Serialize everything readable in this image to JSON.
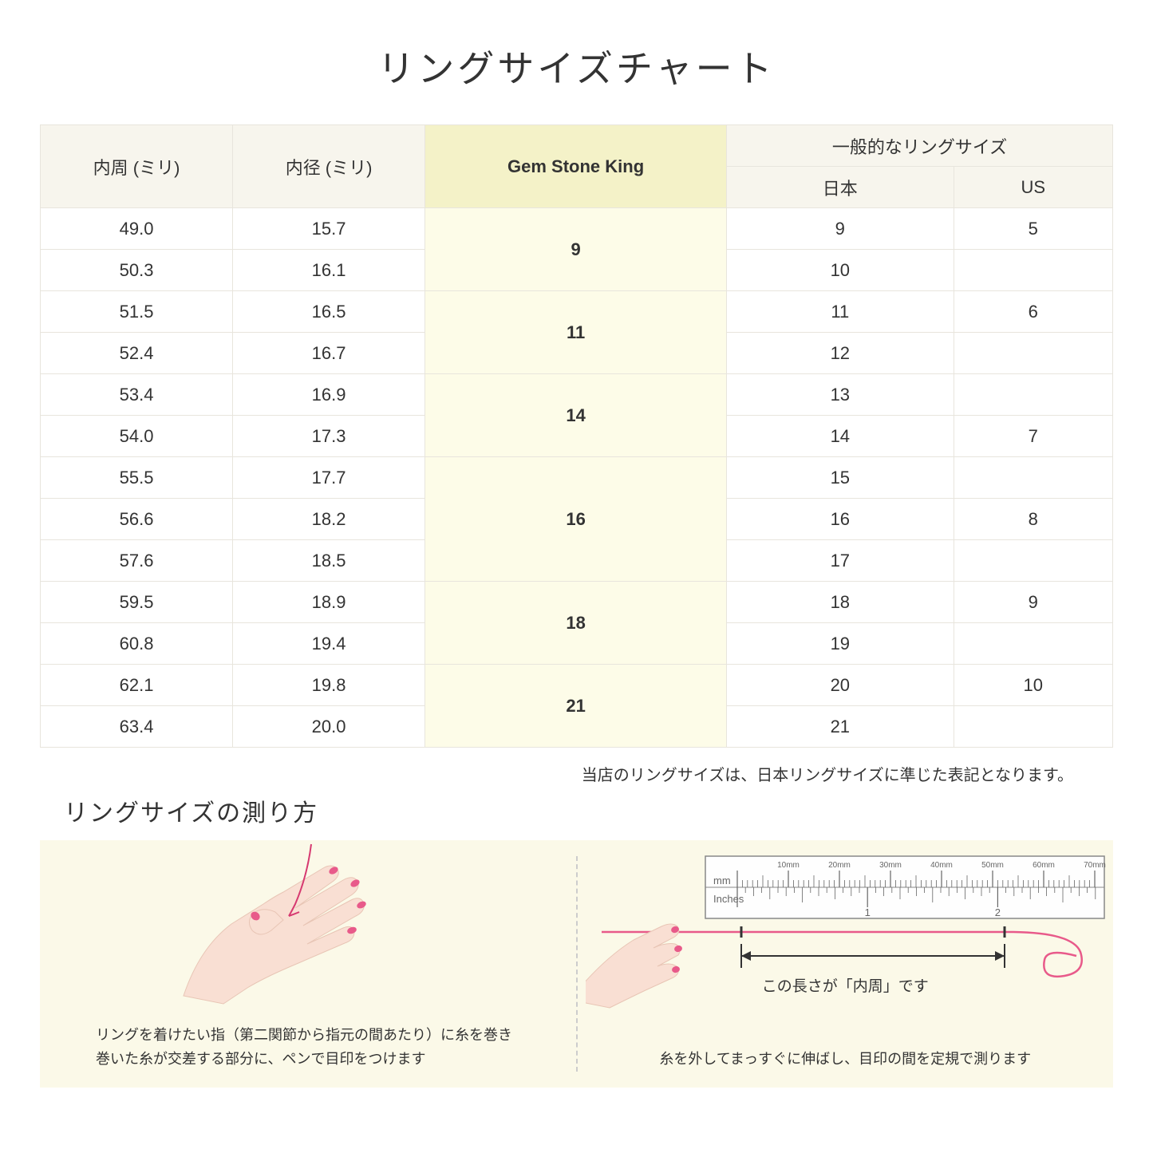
{
  "title": "リングサイズチャート",
  "headers": {
    "circumference": "内周 (ミリ)",
    "diameter": "内径 (ミリ)",
    "gsk": "Gem Stone King",
    "general": "一般的なリングサイズ",
    "japan": "日本",
    "us": "US"
  },
  "groups": [
    {
      "gsk": "9",
      "rows": [
        {
          "c": "49.0",
          "d": "15.7",
          "jp": "9",
          "us": "5"
        },
        {
          "c": "50.3",
          "d": "16.1",
          "jp": "10",
          "us": ""
        }
      ]
    },
    {
      "gsk": "11",
      "rows": [
        {
          "c": "51.5",
          "d": "16.5",
          "jp": "11",
          "us": "6"
        },
        {
          "c": "52.4",
          "d": "16.7",
          "jp": "12",
          "us": ""
        }
      ]
    },
    {
      "gsk": "14",
      "rows": [
        {
          "c": "53.4",
          "d": "16.9",
          "jp": "13",
          "us": ""
        },
        {
          "c": "54.0",
          "d": "17.3",
          "jp": "14",
          "us": "7"
        }
      ]
    },
    {
      "gsk": "16",
      "rows": [
        {
          "c": "55.5",
          "d": "17.7",
          "jp": "15",
          "us": ""
        },
        {
          "c": "56.6",
          "d": "18.2",
          "jp": "16",
          "us": "8"
        },
        {
          "c": "57.6",
          "d": "18.5",
          "jp": "17",
          "us": ""
        }
      ]
    },
    {
      "gsk": "18",
      "rows": [
        {
          "c": "59.5",
          "d": "18.9",
          "jp": "18",
          "us": "9"
        },
        {
          "c": "60.8",
          "d": "19.4",
          "jp": "19",
          "us": ""
        }
      ]
    },
    {
      "gsk": "21",
      "rows": [
        {
          "c": "62.1",
          "d": "19.8",
          "jp": "20",
          "us": "10"
        },
        {
          "c": "63.4",
          "d": "20.0",
          "jp": "21",
          "us": ""
        }
      ]
    }
  ],
  "note": "当店のリングサイズは、日本リングサイズに準じた表記となります。",
  "subtitle": "リングサイズの測り方",
  "instructions": {
    "left": "リングを着けたい指（第二関節から指元の間あたり）に糸を巻き\n巻いた糸が交差する部分に、ペンで目印をつけます",
    "right_label": "この長さが「内周」です",
    "right": "糸を外してまっすぐに伸ばし、目印の間を定規で測ります"
  },
  "ruler": {
    "mm_label": "mm",
    "inches_label": "Inches",
    "mm_ticks": [
      "10mm",
      "20mm",
      "30mm",
      "40mm",
      "50mm",
      "60mm",
      "70mm"
    ],
    "inch_ticks": [
      "1",
      "2"
    ]
  },
  "colors": {
    "header_bg": "#f7f5ed",
    "highlight_header": "#f4f2c8",
    "highlight_cell": "#fdfce8",
    "panel_bg": "#fbf9e8",
    "skin": "#f9dfd3",
    "nail": "#e85a8a",
    "thread": "#d63970"
  }
}
